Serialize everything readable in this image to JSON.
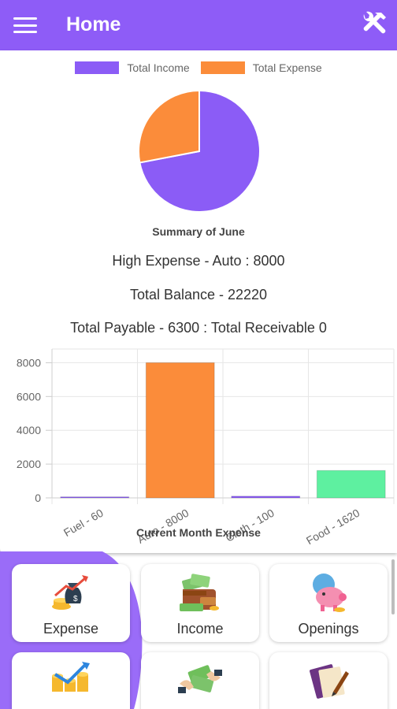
{
  "appbar": {
    "title": "Home",
    "menu_icon": "hamburger-menu-icon",
    "tools_icon": "tools-icon",
    "color": "#8e5cf7"
  },
  "pie": {
    "legend": [
      {
        "label": "Total Income",
        "color": "#8b5cf6"
      },
      {
        "label": "Total Expense",
        "color": "#fb8c3a"
      }
    ],
    "title": "Summary of June"
  },
  "summary": {
    "high_expense": "High Expense - Auto : 8000",
    "total_balance": "Total Balance - 22220",
    "payable_receivable": "Total Payable - 6300 : Total Receivable 0"
  },
  "chart_data": [
    {
      "type": "pie",
      "title": "Summary of June",
      "labels": [
        "Total Income",
        "Total Expense"
      ],
      "values": [
        72,
        28
      ],
      "colors": [
        "#8b5cf6",
        "#fb8c3a"
      ],
      "legend": "top"
    },
    {
      "type": "bar",
      "title": "Current Month Expense",
      "categories": [
        "Fuel - 60",
        "Auto - 8000",
        "Cloth - 100",
        "Food - 1620"
      ],
      "values": [
        60,
        8000,
        100,
        1620
      ],
      "colors": [
        "#8b5cf6",
        "#fb8c3a",
        "#8b5cf6",
        "#5ef0a0"
      ],
      "yticks": [
        0,
        2000,
        4000,
        6000,
        8000
      ],
      "ylim": [
        0,
        8300
      ],
      "grid": true
    }
  ],
  "tiles": [
    {
      "label": "Expense",
      "icon": "money-bag-growth-icon"
    },
    {
      "label": "Income",
      "icon": "wallet-cash-icon"
    },
    {
      "label": "Openings",
      "icon": "piggy-bank-icon"
    },
    {
      "label": "",
      "icon": "coins-growth-icon"
    },
    {
      "label": "",
      "icon": "cash-exchange-icon"
    },
    {
      "label": "",
      "icon": "notebook-pen-icon"
    }
  ]
}
